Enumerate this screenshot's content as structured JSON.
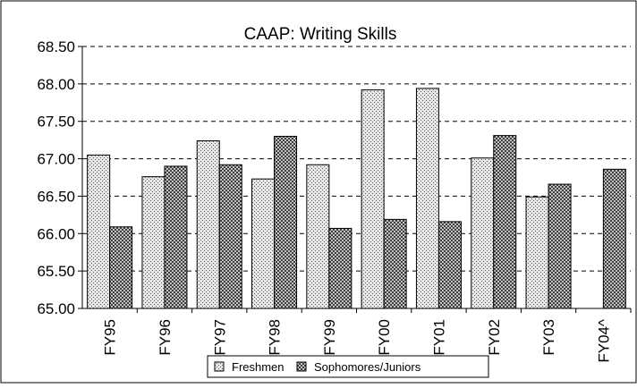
{
  "chart_data": {
    "type": "bar",
    "title": "CAAP: Writing Skills",
    "xlabel": "",
    "ylabel": "",
    "ylim": [
      65.0,
      68.5
    ],
    "ytick_step": 0.5,
    "ytick_labels": [
      "65.00",
      "65.50",
      "66.00",
      "66.50",
      "67.00",
      "67.50",
      "68.00",
      "68.50"
    ],
    "grid": "horizontal-dashed",
    "legend_position": "bottom-center",
    "categories": [
      "FY95",
      "FY96",
      "FY97",
      "FY98",
      "FY99",
      "FY00",
      "FY01",
      "FY02",
      "FY03",
      "FY04^"
    ],
    "series": [
      {
        "name": "Freshmen",
        "pattern": "dotted-light",
        "values": [
          67.05,
          66.76,
          67.24,
          66.73,
          66.92,
          67.92,
          67.94,
          67.01,
          66.49,
          null
        ]
      },
      {
        "name": "Sophomores/Juniors",
        "pattern": "checkered-dark",
        "values": [
          66.09,
          66.9,
          66.92,
          67.3,
          66.07,
          66.19,
          66.16,
          67.31,
          66.66,
          66.86
        ]
      }
    ]
  }
}
